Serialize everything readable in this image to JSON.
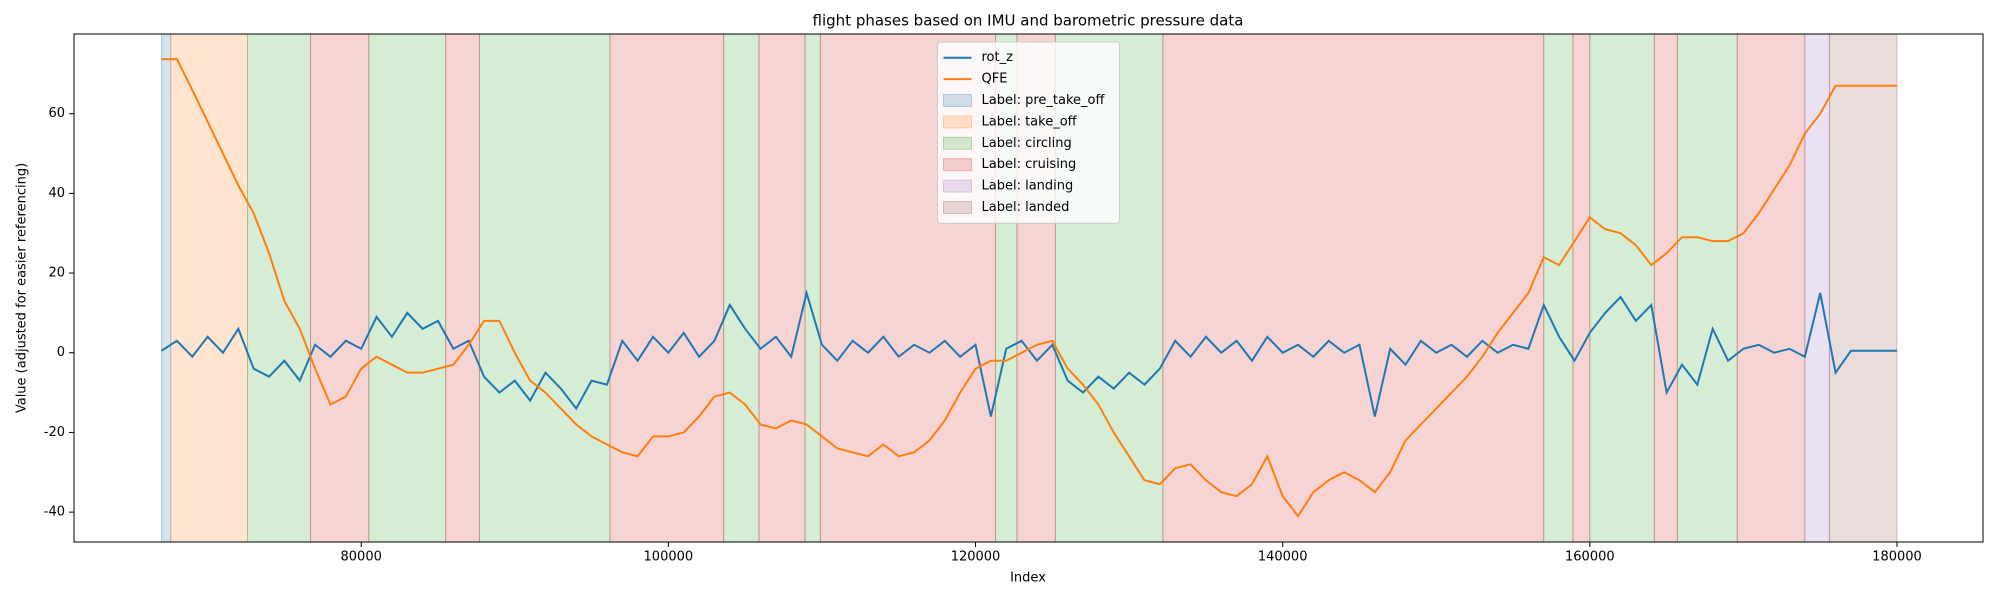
{
  "chart_data": {
    "type": "line",
    "title": "flight phases based on IMU and barometric pressure data",
    "xlabel": "Index",
    "ylabel": "Value (adjusted for easier referencing)",
    "xlim": [
      61300,
      185600
    ],
    "ylim": [
      -47.5,
      80
    ],
    "xticks": [
      80000,
      100000,
      120000,
      140000,
      160000,
      180000
    ],
    "yticks": [
      -40,
      -20,
      0,
      20,
      40,
      60
    ],
    "legend": "upper center",
    "span_alpha": 0.2,
    "x": [
      67000,
      68000,
      69000,
      70000,
      71000,
      72000,
      73000,
      74000,
      75000,
      76000,
      77000,
      78000,
      79000,
      80000,
      81000,
      82000,
      83000,
      84000,
      85000,
      86000,
      87000,
      88000,
      89000,
      90000,
      91000,
      92000,
      93000,
      94000,
      95000,
      96000,
      97000,
      98000,
      99000,
      100000,
      101000,
      102000,
      103000,
      104000,
      105000,
      106000,
      107000,
      108000,
      109000,
      110000,
      111000,
      112000,
      113000,
      114000,
      115000,
      116000,
      117000,
      118000,
      119000,
      120000,
      121000,
      122000,
      123000,
      124000,
      125000,
      126000,
      127000,
      128000,
      129000,
      130000,
      131000,
      132000,
      133000,
      134000,
      135000,
      136000,
      137000,
      138000,
      139000,
      140000,
      141000,
      142000,
      143000,
      144000,
      145000,
      146000,
      147000,
      148000,
      149000,
      150000,
      151000,
      152000,
      153000,
      154000,
      155000,
      156000,
      157000,
      158000,
      159000,
      160000,
      161000,
      162000,
      163000,
      164000,
      165000,
      166000,
      167000,
      168000,
      169000,
      170000,
      171000,
      172000,
      173000,
      174000,
      175000,
      176000,
      177000,
      178000,
      179000,
      180000
    ],
    "series": [
      {
        "name": "rot_z",
        "color": "#1f77b4",
        "values": [
          0.5,
          3,
          -1,
          4,
          0,
          6,
          -4,
          -6,
          -2,
          -7,
          2,
          -1,
          3,
          1,
          9,
          4,
          10,
          6,
          8,
          1,
          3,
          -6,
          -10,
          -7,
          -12,
          -5,
          -9,
          -14,
          -7,
          -8,
          3,
          -2,
          4,
          0,
          5,
          -1,
          3,
          12,
          6,
          1,
          4,
          -1,
          15,
          2,
          -2,
          3,
          0,
          4,
          -1,
          2,
          0,
          3,
          -1,
          2,
          -16,
          1,
          3,
          -2,
          2,
          -7,
          -10,
          -6,
          -9,
          -5,
          -8,
          -4,
          3,
          -1,
          4,
          0,
          3,
          -2,
          4,
          0,
          2,
          -1,
          3,
          0,
          2,
          -16,
          1,
          -3,
          3,
          0,
          2,
          -1,
          3,
          0,
          2,
          1,
          12,
          4,
          -2,
          5,
          10,
          14,
          8,
          12,
          -10,
          -3,
          -8,
          6,
          -2,
          1,
          2,
          0,
          1,
          -1,
          15,
          -5,
          0.5,
          0.5,
          0.5,
          0.5
        ]
      },
      {
        "name": "QFE",
        "color": "#ff7f0e",
        "values": [
          73.7,
          73.7,
          66,
          58,
          50,
          42,
          35,
          25,
          13,
          6,
          -4,
          -13,
          -11,
          -4,
          -1,
          -3,
          -5,
          -5,
          -4,
          -3,
          2,
          8,
          8,
          0,
          -7,
          -10,
          -14,
          -18,
          -21,
          -23,
          -25,
          -26,
          -21,
          -21,
          -20,
          -16,
          -11,
          -10,
          -13,
          -18,
          -19,
          -17,
          -18,
          -21,
          -24,
          -25,
          -26,
          -23,
          -26,
          -25,
          -22,
          -17,
          -10,
          -4,
          -2,
          -2,
          0,
          2,
          3,
          -4,
          -8,
          -13,
          -20,
          -26,
          -32,
          -33,
          -29,
          -28,
          -32,
          -35,
          -36,
          -33,
          -26,
          -36,
          -41,
          -35,
          -32,
          -30,
          -32,
          -35,
          -30,
          -22,
          -18,
          -14,
          -10,
          -6,
          -1,
          5,
          10,
          15,
          24,
          22,
          28,
          34,
          31,
          30,
          27,
          22,
          25,
          29,
          29,
          28,
          28,
          30,
          35,
          41,
          47,
          55,
          60,
          67,
          67,
          67,
          67,
          67
        ]
      }
    ],
    "phases": [
      {
        "name": "Label: pre_take_off",
        "color": "#1f77b4",
        "spans": [
          [
            67000,
            67600
          ]
        ]
      },
      {
        "name": "Label: take_off",
        "color": "#ff7f0e",
        "spans": [
          [
            67600,
            72600
          ]
        ]
      },
      {
        "name": "Label: circling",
        "color": "#2ca02c",
        "spans": [
          [
            72600,
            76700
          ],
          [
            80500,
            85500
          ],
          [
            87700,
            96200
          ],
          [
            103600,
            105900
          ],
          [
            108900,
            109900
          ],
          [
            121300,
            122700
          ],
          [
            125200,
            132200
          ],
          [
            157000,
            158900
          ],
          [
            160000,
            164200
          ],
          [
            165700,
            169600
          ]
        ]
      },
      {
        "name": "Label: cruising",
        "color": "#d62728",
        "spans": [
          [
            76700,
            80500
          ],
          [
            85500,
            87700
          ],
          [
            96200,
            103600
          ],
          [
            105900,
            108900
          ],
          [
            109900,
            121300
          ],
          [
            122700,
            125200
          ],
          [
            132200,
            157000
          ],
          [
            158900,
            160000
          ],
          [
            164200,
            165700
          ],
          [
            169600,
            174000
          ]
        ]
      },
      {
        "name": "Label: landing",
        "color": "#9467bd",
        "spans": [
          [
            174000,
            175600
          ]
        ]
      },
      {
        "name": "Label: landed",
        "color": "#8c564b",
        "spans": [
          [
            175600,
            180000
          ]
        ]
      }
    ]
  }
}
